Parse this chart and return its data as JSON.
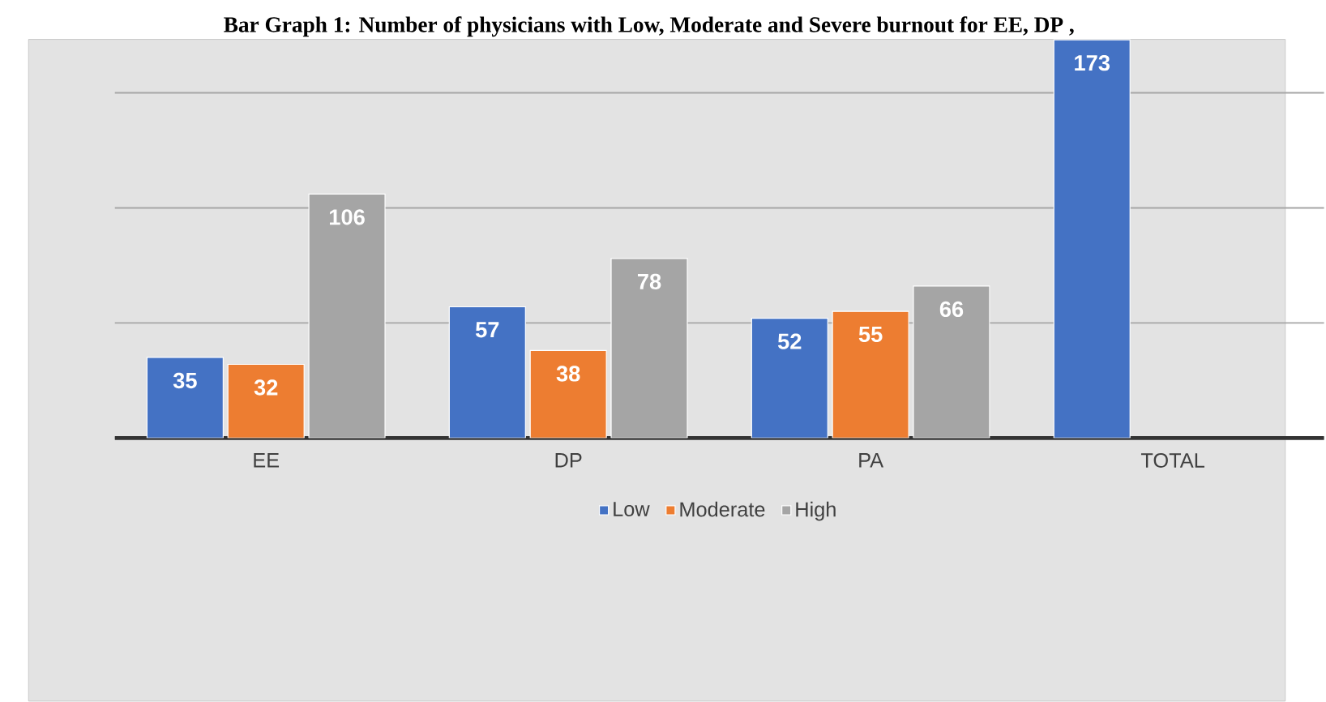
{
  "chart_data": {
    "type": "bar",
    "title": "Bar Graph 1: Number of physicians with Low, Moderate and Severe burnout for EE, DP ,",
    "categories": [
      "EE",
      "DP",
      "PA",
      "TOTAL"
    ],
    "series": [
      {
        "name": "Low",
        "color": "#4472c4",
        "values": [
          35,
          57,
          52,
          173
        ]
      },
      {
        "name": "Moderate",
        "color": "#ed7d31",
        "values": [
          32,
          38,
          55,
          null
        ]
      },
      {
        "name": "High",
        "color": "#a5a5a5",
        "values": [
          106,
          78,
          66,
          null
        ]
      }
    ],
    "yticks": [
      {
        "value": 0,
        "label": null
      },
      {
        "value": 50,
        "label": null
      },
      {
        "value": 100,
        "label": null
      },
      {
        "value": 150,
        "label": null
      }
    ],
    "grid": "y",
    "tick_labels": "x",
    "data_labels": true,
    "legend": "bottom"
  }
}
